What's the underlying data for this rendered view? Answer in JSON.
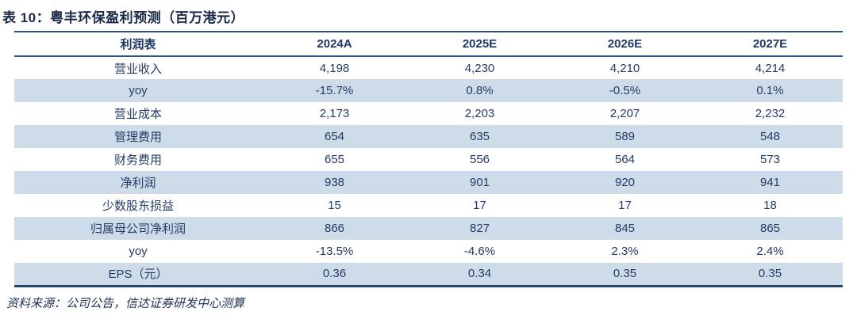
{
  "table": {
    "title": "表 10：粤丰环保盈利预测（百万港元）",
    "columns": [
      "利润表",
      "2024A",
      "2025E",
      "2026E",
      "2027E"
    ],
    "rows": [
      {
        "label": "营业收入",
        "values": [
          "4,198",
          "4,230",
          "4,210",
          "4,214"
        ]
      },
      {
        "label": "yoy",
        "values": [
          "-15.7%",
          "0.8%",
          "-0.5%",
          "0.1%"
        ]
      },
      {
        "label": "营业成本",
        "values": [
          "2,173",
          "2,203",
          "2,207",
          "2,232"
        ]
      },
      {
        "label": "管理费用",
        "values": [
          "654",
          "635",
          "589",
          "548"
        ]
      },
      {
        "label": "财务费用",
        "values": [
          "655",
          "556",
          "564",
          "573"
        ]
      },
      {
        "label": "净利润",
        "values": [
          "938",
          "901",
          "920",
          "941"
        ]
      },
      {
        "label": "少数股东损益",
        "values": [
          "15",
          "17",
          "17",
          "18"
        ]
      },
      {
        "label": "归属母公司净利润",
        "values": [
          "866",
          "827",
          "845",
          "865"
        ]
      },
      {
        "label": "yoy",
        "values": [
          "-13.5%",
          "-4.6%",
          "2.3%",
          "2.4%"
        ]
      },
      {
        "label": "EPS（元）",
        "values": [
          "0.36",
          "0.34",
          "0.35",
          "0.35"
        ]
      }
    ],
    "source_note": "资料来源：公司公告，信达证券研发中心测算"
  },
  "colors": {
    "text_navy": "#243a64",
    "header_text": "#1f3864",
    "title_text": "#1c2a4a",
    "row_shade": "#cedcea",
    "rule_line": "#2e5578",
    "bottom_rule": "#24466b"
  }
}
